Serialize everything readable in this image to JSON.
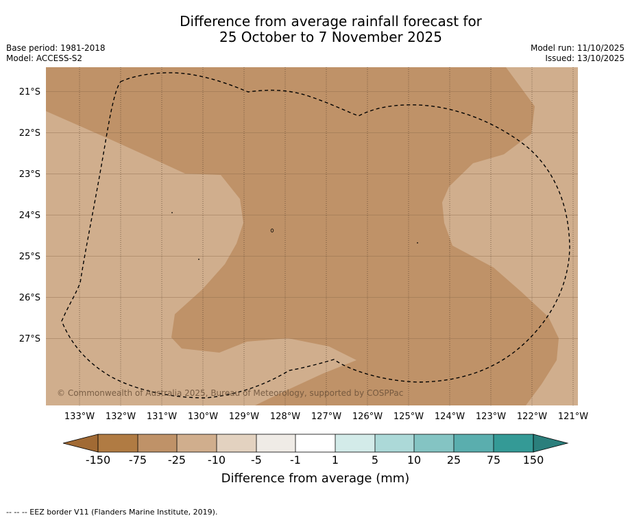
{
  "title": {
    "line1": "Difference from average rainfall forecast for",
    "line2": "25 October to 7 November 2025"
  },
  "meta": {
    "base_period": "Base period: 1981-2018",
    "model": "Model: ACCESS-S2",
    "model_run": "Model run: 11/10/2025",
    "issued": "Issued: 13/10/2025"
  },
  "map": {
    "lat_labels": [
      "21°S",
      "22°S",
      "23°S",
      "24°S",
      "25°S",
      "26°S",
      "27°S"
    ],
    "lon_labels": [
      "133°W",
      "132°W",
      "131°W",
      "130°W",
      "129°W",
      "128°W",
      "127°W",
      "126°W",
      "125°W",
      "124°W",
      "123°W",
      "122°W",
      "121°W"
    ],
    "copyright": "© Commonwealth of Australia 2025, Bureau of Meteorology, supported by COSPPac",
    "colors": {
      "dry_moderate": "#bf9268",
      "dry_light": "#d0ae8d"
    }
  },
  "colorbar": {
    "title": "Difference from average (mm)",
    "labels": [
      "-150",
      "-75",
      "-25",
      "-10",
      "-5",
      "-1",
      "1",
      "5",
      "10",
      "25",
      "75",
      "150"
    ],
    "colors": [
      "#a16a34",
      "#b07b43",
      "#bf9268",
      "#d0ae8d",
      "#e3d2c0",
      "#efebe6",
      "#ffffff",
      "#d3ebe9",
      "#acd9d8",
      "#84c4c3",
      "#5aaeae",
      "#349a96",
      "#2b7f7c"
    ]
  },
  "footer": {
    "legend": "--  --  -- EEZ border V11 (Flanders Marine Institute, 2019)."
  }
}
